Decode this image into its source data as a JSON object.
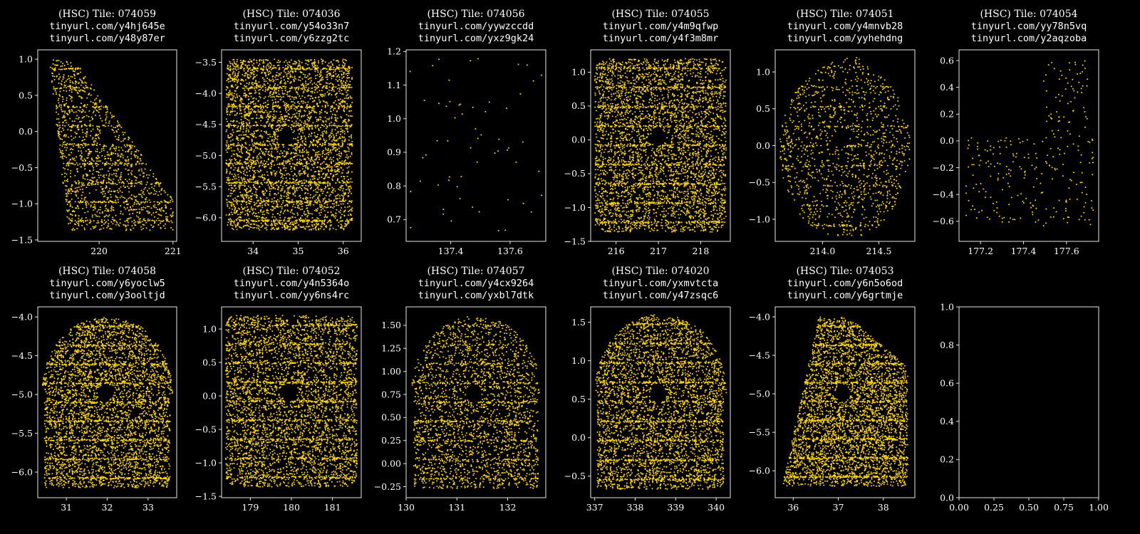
{
  "figure": {
    "background": "#000000",
    "axis_color": "#ffffff",
    "text_color": "#ffffff"
  },
  "chart_data": [
    {
      "type": "scatter",
      "title_lines": [
        "(HSC) Tile: 074059",
        "tinyurl.com/y4hj645e",
        "tinyurl.com/y48y87er"
      ],
      "color": "#ffd700",
      "xlim": [
        219.17,
        221.05
      ],
      "ylim": [
        -1.52,
        1.13
      ],
      "grid": false,
      "xticks": [
        220,
        221
      ],
      "xtick_labels": [
        "220",
        "221"
      ],
      "yticks": [
        -1.5,
        -1.0,
        -0.5,
        0.0,
        0.5,
        1.0
      ],
      "ytick_labels": [
        "−1.5",
        "−1.0",
        "−0.5",
        "0.0",
        "0.5",
        "1.0"
      ],
      "points": {
        "n": 1600,
        "seed": 11,
        "x": [
          219.29,
          221.0
        ],
        "y": [
          -1.37,
          1.0
        ]
      }
    },
    {
      "type": "scatter",
      "title_lines": [
        "(HSC) Tile: 074036",
        "tinyurl.com/y54o33n7",
        "tinyurl.com/y6zzg2tc"
      ],
      "color": "#ffd700",
      "xlim": [
        33.3,
        36.4
      ],
      "ylim": [
        -6.38,
        -3.3
      ],
      "grid": false,
      "xticks": [
        34,
        35,
        36
      ],
      "xtick_labels": [
        "34",
        "35",
        "36"
      ],
      "yticks": [
        -6.0,
        -5.5,
        -5.0,
        -4.5,
        -4.0,
        -3.5
      ],
      "ytick_labels": [
        "−6.0",
        "−5.5",
        "−5.0",
        "−4.5",
        "−4.0",
        "−3.5"
      ],
      "points": {
        "n": 4200,
        "seed": 23,
        "x": [
          33.4,
          36.2
        ],
        "y": [
          -6.2,
          -3.45
        ]
      }
    },
    {
      "type": "scatter",
      "title_lines": [
        "(HSC) Tile: 074056",
        "tinyurl.com/yywzccdd",
        "tinyurl.com/yxz9gk24"
      ],
      "color": "#ffd700",
      "xlim": [
        137.25,
        137.72
      ],
      "ylim": [
        0.635,
        1.205
      ],
      "grid": false,
      "xticks": [
        137.4,
        137.6
      ],
      "xtick_labels": [
        "137.4",
        "137.6"
      ],
      "yticks": [
        0.7,
        0.8,
        0.9,
        1.0,
        1.1,
        1.2
      ],
      "ytick_labels": [
        "0.7",
        "0.8",
        "0.9",
        "1.0",
        "1.1",
        "1.2"
      ],
      "points": {
        "n": 60,
        "seed": 37,
        "x": [
          137.26,
          137.71
        ],
        "y": [
          0.655,
          1.18
        ]
      }
    },
    {
      "type": "scatter",
      "title_lines": [
        "(HSC) Tile: 074055",
        "tinyurl.com/y4m9qfwp",
        "tinyurl.com/y4f3m8mr"
      ],
      "color": "#ffd700",
      "xlim": [
        215.4,
        218.7
      ],
      "ylim": [
        -1.5,
        1.33
      ],
      "grid": false,
      "xticks": [
        216,
        217,
        218
      ],
      "xtick_labels": [
        "216",
        "217",
        "218"
      ],
      "yticks": [
        -1.5,
        -1.0,
        -0.5,
        0.0,
        0.5,
        1.0
      ],
      "ytick_labels": [
        "−1.5",
        "−1.0",
        "−0.5",
        "0.0",
        "0.5",
        "1.0"
      ],
      "points": {
        "n": 4200,
        "seed": 41,
        "x": [
          215.5,
          218.6
        ],
        "y": [
          -1.36,
          1.2
        ]
      }
    },
    {
      "type": "scatter",
      "title_lines": [
        "(HSC) Tile: 074051",
        "tinyurl.com/y4mnvb28",
        "tinyurl.com/yyhehdng"
      ],
      "color": "#ffd700",
      "xlim": [
        213.58,
        214.82
      ],
      "ylim": [
        -1.3,
        1.3
      ],
      "grid": false,
      "xticks": [
        214.0,
        214.5
      ],
      "xtick_labels": [
        "214.0",
        "214.5"
      ],
      "yticks": [
        -1.0,
        -0.5,
        0.0,
        0.5,
        1.0
      ],
      "ytick_labels": [
        "−1.0",
        "−0.5",
        "0.0",
        "0.5",
        "1.0"
      ],
      "points": {
        "n": 1300,
        "seed": 53,
        "x": [
          213.62,
          214.78
        ],
        "y": [
          -1.22,
          1.2
        ]
      }
    },
    {
      "type": "scatter",
      "title_lines": [
        "(HSC) Tile: 074054",
        "tinyurl.com/yy78n5vq",
        "tinyurl.com/y2aqzoba"
      ],
      "color": "#ffd700",
      "xlim": [
        177.1,
        177.75
      ],
      "ylim": [
        -0.75,
        0.68
      ],
      "grid": false,
      "xticks": [
        177.2,
        177.4,
        177.6
      ],
      "xtick_labels": [
        "177.2",
        "177.4",
        "177.6"
      ],
      "yticks": [
        -0.6,
        -0.4,
        -0.2,
        0.0,
        0.2,
        0.4,
        0.6
      ],
      "ytick_labels": [
        "−0.6",
        "−0.4",
        "−0.2",
        "0.0",
        "0.2",
        "0.4",
        "0.6"
      ],
      "points": {
        "n": 280,
        "seed": 67,
        "x": [
          177.13,
          177.73
        ],
        "y": [
          -0.7,
          0.62
        ]
      }
    },
    {
      "type": "scatter",
      "title_lines": [
        "(HSC) Tile: 074058",
        "tinyurl.com/y6yoclw5",
        "tinyurl.com/y3ooltjd"
      ],
      "color": "#ffd700",
      "xlim": [
        30.3,
        33.7
      ],
      "ylim": [
        -6.33,
        -3.87
      ],
      "grid": false,
      "xticks": [
        31,
        32,
        33
      ],
      "xtick_labels": [
        "31",
        "32",
        "33"
      ],
      "yticks": [
        -6.0,
        -5.5,
        -5.0,
        -4.5,
        -4.0
      ],
      "ytick_labels": [
        "−6.0",
        "−5.5",
        "−5.0",
        "−4.5",
        "−4.0"
      ],
      "points": {
        "n": 4200,
        "seed": 71,
        "x": [
          30.4,
          33.6
        ],
        "y": [
          -6.2,
          -4.0
        ]
      }
    },
    {
      "type": "scatter",
      "title_lines": [
        "(HSC) Tile: 074052",
        "tinyurl.com/y4n5364o",
        "tinyurl.com/yy6ns4rc"
      ],
      "color": "#ffd700",
      "xlim": [
        178.3,
        181.7
      ],
      "ylim": [
        -1.52,
        1.33
      ],
      "grid": false,
      "xticks": [
        179,
        180,
        181
      ],
      "xtick_labels": [
        "179",
        "180",
        "181"
      ],
      "yticks": [
        -1.5,
        -1.0,
        -0.5,
        0.0,
        0.5,
        1.0
      ],
      "ytick_labels": [
        "−1.5",
        "−1.0",
        "−0.5",
        "0.0",
        "0.5",
        "1.0"
      ],
      "points": {
        "n": 4200,
        "seed": 83,
        "x": [
          178.4,
          181.6
        ],
        "y": [
          -1.36,
          1.2
        ]
      }
    },
    {
      "type": "scatter",
      "title_lines": [
        "(HSC) Tile: 074057",
        "tinyurl.com/y4cx9264",
        "tinyurl.com/yxbl7dtk"
      ],
      "color": "#ffd700",
      "xlim": [
        130.0,
        132.75
      ],
      "ylim": [
        -0.37,
        1.7
      ],
      "grid": false,
      "xticks": [
        130,
        131,
        132
      ],
      "xtick_labels": [
        "130",
        "131",
        "132"
      ],
      "yticks": [
        -0.25,
        0.0,
        0.25,
        0.5,
        0.75,
        1.0,
        1.25,
        1.5
      ],
      "ytick_labels": [
        "−0.25",
        "0.00",
        "0.25",
        "0.50",
        "0.75",
        "1.00",
        "1.25",
        "1.50"
      ],
      "points": {
        "n": 2600,
        "seed": 97,
        "x": [
          130.1,
          132.65
        ],
        "y": [
          -0.27,
          1.6
        ]
      }
    },
    {
      "type": "scatter",
      "title_lines": [
        "(HSC) Tile: 074020",
        "tinyurl.com/yxmvtcta",
        "tinyurl.com/y47zsqc6"
      ],
      "color": "#ffd700",
      "xlim": [
        336.9,
        340.35
      ],
      "ylim": [
        -0.78,
        1.7
      ],
      "grid": false,
      "xticks": [
        337,
        338,
        339,
        340
      ],
      "xtick_labels": [
        "337",
        "338",
        "339",
        "340"
      ],
      "yticks": [
        -0.5,
        0.0,
        0.5,
        1.0,
        1.5
      ],
      "ytick_labels": [
        "−0.5",
        "0.0",
        "0.5",
        "1.0",
        "1.5"
      ],
      "points": {
        "n": 4000,
        "seed": 101,
        "x": [
          337.0,
          340.25
        ],
        "y": [
          -0.67,
          1.6
        ]
      }
    },
    {
      "type": "scatter",
      "title_lines": [
        "(HSC) Tile: 074053",
        "tinyurl.com/y6n5o6od",
        "tinyurl.com/y6grtmje"
      ],
      "color": "#ffd700",
      "xlim": [
        35.6,
        38.7
      ],
      "ylim": [
        -6.35,
        -3.87
      ],
      "grid": false,
      "xticks": [
        36,
        37,
        38
      ],
      "xtick_labels": [
        "36",
        "37",
        "38"
      ],
      "yticks": [
        -6.0,
        -5.5,
        -5.0,
        -4.5,
        -4.0
      ],
      "ytick_labels": [
        "−6.0",
        "−5.5",
        "−5.0",
        "−4.5",
        "−4.0"
      ],
      "points": {
        "n": 4200,
        "seed": 113,
        "x": [
          35.7,
          38.6
        ],
        "y": [
          -6.2,
          -4.0
        ]
      }
    },
    {
      "type": "scatter",
      "title_lines": [],
      "color": "#ffd700",
      "xlim": [
        0.0,
        1.0
      ],
      "ylim": [
        0.0,
        1.0
      ],
      "grid": false,
      "xticks": [
        0.0,
        0.25,
        0.5,
        0.75,
        1.0
      ],
      "xtick_labels": [
        "0.00",
        "0.25",
        "0.50",
        "0.75",
        "1.00"
      ],
      "yticks": [
        0.0,
        0.2,
        0.4,
        0.6,
        0.8,
        1.0
      ],
      "ytick_labels": [
        "0.0",
        "0.2",
        "0.4",
        "0.6",
        "0.8",
        "1.0"
      ],
      "points": {
        "n": 0
      }
    }
  ]
}
